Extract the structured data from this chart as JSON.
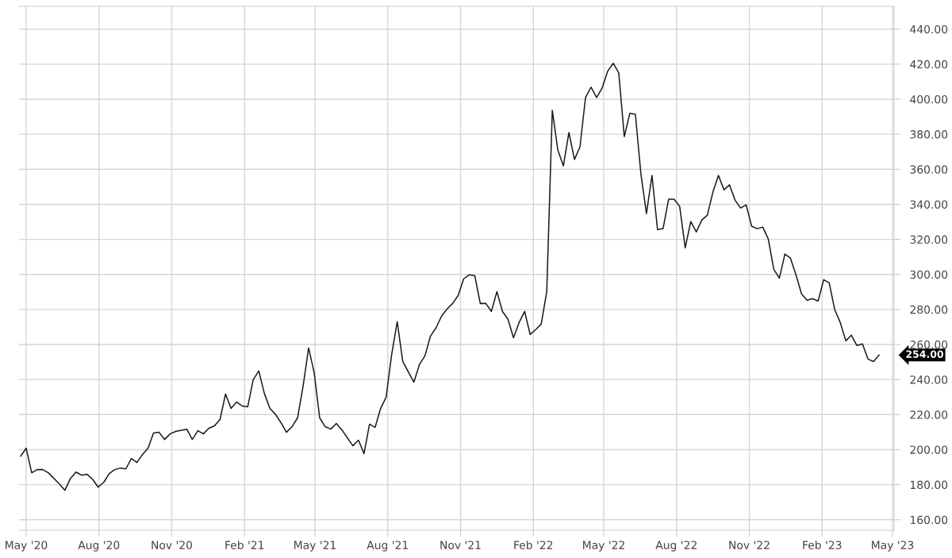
{
  "chart_data": {
    "type": "line",
    "x": [
      "2020-04-24",
      "2020-05-01",
      "2020-05-08",
      "2020-05-15",
      "2020-05-22",
      "2020-05-29",
      "2020-06-12",
      "2020-06-19",
      "2020-06-26",
      "2020-07-03",
      "2020-07-10",
      "2020-07-17",
      "2020-07-24",
      "2020-07-31",
      "2020-08-07",
      "2020-08-14",
      "2020-08-21",
      "2020-08-28",
      "2020-09-04",
      "2020-09-11",
      "2020-09-18",
      "2020-09-25",
      "2020-10-02",
      "2020-10-09",
      "2020-10-16",
      "2020-10-23",
      "2020-10-30",
      "2020-11-06",
      "2020-11-20",
      "2020-11-27",
      "2020-12-04",
      "2020-12-11",
      "2020-12-18",
      "2020-12-25",
      "2021-01-01",
      "2021-01-08",
      "2021-01-15",
      "2021-01-22",
      "2021-01-29",
      "2021-02-05",
      "2021-02-12",
      "2021-02-19",
      "2021-02-26",
      "2021-03-05",
      "2021-03-12",
      "2021-03-19",
      "2021-03-26",
      "2021-04-02",
      "2021-04-09",
      "2021-04-16",
      "2021-04-23",
      "2021-04-30",
      "2021-05-07",
      "2021-05-14",
      "2021-05-21",
      "2021-05-28",
      "2021-06-04",
      "2021-06-18",
      "2021-06-25",
      "2021-07-02",
      "2021-07-09",
      "2021-07-16",
      "2021-07-23",
      "2021-07-30",
      "2021-08-06",
      "2021-08-13",
      "2021-08-20",
      "2021-09-03",
      "2021-09-10",
      "2021-09-17",
      "2021-09-24",
      "2021-10-01",
      "2021-10-08",
      "2021-10-15",
      "2021-10-22",
      "2021-10-29",
      "2021-11-05",
      "2021-11-12",
      "2021-11-19",
      "2021-11-26",
      "2021-12-03",
      "2021-12-10",
      "2021-12-17",
      "2021-12-24",
      "2021-12-31",
      "2022-01-07",
      "2022-01-14",
      "2022-01-21",
      "2022-01-28",
      "2022-02-04",
      "2022-02-11",
      "2022-02-18",
      "2022-02-25",
      "2022-03-04",
      "2022-03-11",
      "2022-03-18",
      "2022-03-25",
      "2022-04-01",
      "2022-04-08",
      "2022-04-15",
      "2022-04-22",
      "2022-04-29",
      "2022-05-06",
      "2022-05-13",
      "2022-05-20",
      "2022-05-27",
      "2022-06-03",
      "2022-06-10",
      "2022-06-17",
      "2022-06-24",
      "2022-07-01",
      "2022-07-08",
      "2022-07-15",
      "2022-07-22",
      "2022-07-29",
      "2022-08-05",
      "2022-08-12",
      "2022-08-19",
      "2022-08-26",
      "2022-09-02",
      "2022-09-09",
      "2022-09-16",
      "2022-09-23",
      "2022-09-30",
      "2022-10-07",
      "2022-10-14",
      "2022-10-21",
      "2022-10-28",
      "2022-11-04",
      "2022-11-11",
      "2022-11-18",
      "2022-11-25",
      "2022-12-02",
      "2022-12-09",
      "2022-12-16",
      "2022-12-23",
      "2022-12-30",
      "2023-01-06",
      "2023-01-13",
      "2023-01-20",
      "2023-01-27",
      "2023-02-03",
      "2023-02-10",
      "2023-02-17",
      "2023-02-24",
      "2023-03-03",
      "2023-03-10",
      "2023-03-17",
      "2023-03-24",
      "2023-03-31",
      "2023-04-07",
      "2023-04-14"
    ],
    "series": [
      {
        "color": "#1a1a1a",
        "values": [
          196.3,
          200.8,
          186.8,
          188.6,
          188.6,
          186.8,
          180.4,
          176.8,
          183.6,
          187.2,
          185.4,
          185.9,
          183.1,
          178.6,
          181.3,
          186.3,
          188.6,
          189.5,
          189.0,
          194.9,
          192.7,
          197.2,
          200.8,
          209.5,
          209.9,
          205.8,
          209.0,
          210.4,
          211.7,
          205.8,
          210.8,
          209.0,
          212.2,
          213.6,
          217.2,
          231.7,
          223.5,
          227.2,
          224.9,
          224.4,
          239.9,
          244.9,
          232.2,
          223.5,
          220.2,
          215.4,
          209.9,
          213.1,
          218.1,
          236.2,
          258.0,
          244.0,
          218.1,
          213.1,
          211.7,
          214.9,
          211.3,
          202.2,
          205.4,
          197.7,
          214.5,
          212.7,
          223.5,
          229.9,
          254.4,
          273.0,
          250.3,
          238.5,
          248.5,
          253.5,
          264.8,
          269.4,
          276.2,
          280.3,
          283.4,
          288.0,
          297.5,
          299.8,
          299.3,
          283.4,
          283.4,
          278.9,
          290.2,
          278.9,
          274.4,
          263.9,
          272.5,
          278.9,
          265.7,
          268.5,
          271.6,
          290.2,
          393.7,
          371.0,
          361.9,
          381.0,
          365.6,
          372.8,
          401.0,
          406.9,
          401.0,
          406.4,
          416.0,
          420.5,
          415.0,
          378.7,
          391.9,
          391.4,
          357.4,
          334.7,
          356.5,
          325.6,
          326.1,
          342.9,
          342.9,
          338.8,
          315.2,
          330.2,
          324.3,
          331.1,
          333.8,
          347.0,
          356.5,
          348.3,
          351.1,
          342.4,
          337.9,
          339.7,
          327.5,
          326.1,
          327.0,
          320.2,
          302.9,
          297.9,
          311.6,
          309.3,
          299.8,
          288.9,
          285.3,
          286.2,
          284.8,
          297.0,
          295.2,
          279.8,
          272.5,
          262.1,
          265.3,
          259.4,
          260.3,
          251.7,
          250.3,
          254
        ]
      }
    ],
    "xlim": [
      "2020-04-22",
      "2023-05-03"
    ],
    "xticks": [
      {
        "value": "2020-05-01",
        "label": "May '20"
      },
      {
        "value": "2020-08-01",
        "label": "Aug '20"
      },
      {
        "value": "2020-11-01",
        "label": "Nov '20"
      },
      {
        "value": "2021-02-01",
        "label": "Feb '21"
      },
      {
        "value": "2021-05-01",
        "label": "May '21"
      },
      {
        "value": "2021-08-01",
        "label": "Aug '21"
      },
      {
        "value": "2021-11-01",
        "label": "Nov '21"
      },
      {
        "value": "2022-02-01",
        "label": "Feb '22"
      },
      {
        "value": "2022-05-01",
        "label": "May '22"
      },
      {
        "value": "2022-08-01",
        "label": "Aug '22"
      },
      {
        "value": "2022-11-01",
        "label": "Nov '22"
      },
      {
        "value": "2023-02-01",
        "label": "Feb '23"
      },
      {
        "value": "2023-05-01",
        "label": "May '23"
      }
    ],
    "ylim": [
      154,
      453
    ],
    "yticks": [
      {
        "value": 160,
        "label": "160.00"
      },
      {
        "value": 180,
        "label": "180.00"
      },
      {
        "value": 200,
        "label": "200.00"
      },
      {
        "value": 220,
        "label": "220.00"
      },
      {
        "value": 240,
        "label": "240.00"
      },
      {
        "value": 260,
        "label": "260.00"
      },
      {
        "value": 280,
        "label": "280.00"
      },
      {
        "value": 300,
        "label": "300.00"
      },
      {
        "value": 320,
        "label": "320.00"
      },
      {
        "value": 340,
        "label": "340.00"
      },
      {
        "value": 360,
        "label": "360.00"
      },
      {
        "value": 380,
        "label": "380.00"
      },
      {
        "value": 400,
        "label": "400.00"
      },
      {
        "value": 420,
        "label": "420.00"
      },
      {
        "value": 440,
        "label": "440.00"
      }
    ],
    "annotations": [
      {
        "text": "254.00",
        "x": "2023-04-14",
        "y": 254
      }
    ],
    "grid": true,
    "marker": "none",
    "line_style": "solid"
  }
}
